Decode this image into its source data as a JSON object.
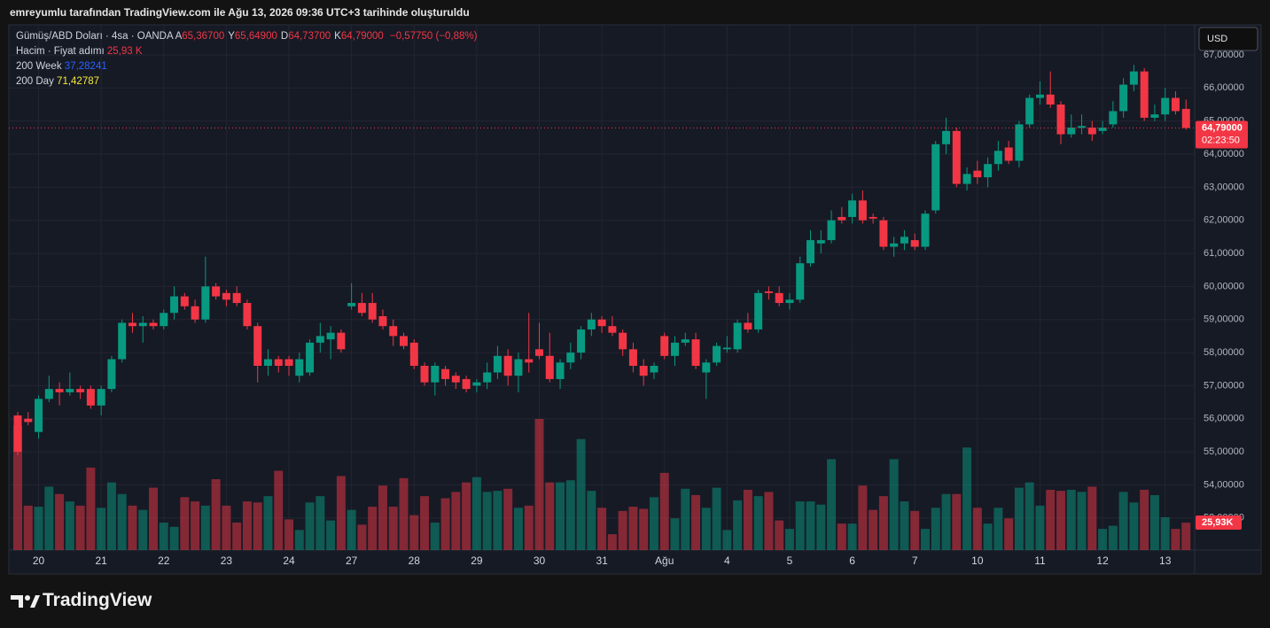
{
  "attribution": "emreyumlu tarafından TradingView.com ile Ağu 13, 2026 09:36 UTC+3 tarihinde oluşturuldu",
  "brand": "TradingView",
  "header": {
    "symbol": "Gümüş/ABD Doları · 4sa · OANDA",
    "ohlc_keys": [
      "A",
      "Y",
      "D",
      "K"
    ],
    "change": "−0,57750 (−0,88%)",
    "volume_name": "Hacim · Fiyat adımı",
    "volume_value": "25,93 K",
    "ma_week_name": "200 Week",
    "ma_week_value": "37,28241",
    "ma_week_color": "#2962ff",
    "ma_day_name": "200 Day",
    "ma_day_value": "71,42787",
    "ma_day_color": "#f5e93b"
  },
  "chart_data": {
    "type": "candlestick",
    "title": "Gümüş/ABD Doları · 4sa · OANDA",
    "currency": "USD",
    "countdown": "02:23:50",
    "up_color": "#089981",
    "down_color": "#f23645",
    "grid": true,
    "categories": [
      null,
      null,
      "20",
      null,
      null,
      null,
      null,
      null,
      "21",
      null,
      null,
      null,
      null,
      null,
      "22",
      null,
      null,
      null,
      null,
      null,
      "23",
      null,
      null,
      null,
      null,
      null,
      "24",
      null,
      null,
      null,
      null,
      null,
      "27",
      null,
      null,
      null,
      null,
      null,
      "28",
      null,
      null,
      null,
      null,
      null,
      "29",
      null,
      null,
      null,
      null,
      null,
      "30",
      null,
      null,
      null,
      null,
      null,
      "31",
      null,
      null,
      null,
      null,
      null,
      "Ağu",
      null,
      null,
      null,
      null,
      null,
      "4",
      null,
      null,
      null,
      null,
      null,
      "5",
      null,
      null,
      null,
      null,
      null,
      "6",
      null,
      null,
      null,
      null,
      null,
      "7",
      null,
      null,
      null,
      null,
      null,
      "10",
      null,
      null,
      null,
      null,
      null,
      "11",
      null,
      null,
      null,
      null,
      null,
      "12",
      null,
      null,
      null,
      null,
      null,
      "13",
      null,
      null
    ],
    "candles": [
      [
        56.1,
        56.2,
        54.9,
        55.0,
        118
      ],
      [
        56.0,
        56.2,
        55.8,
        55.9,
        42
      ],
      [
        55.6,
        56.7,
        55.4,
        56.6,
        41
      ],
      [
        56.6,
        57.3,
        56.5,
        56.9,
        60
      ],
      [
        56.9,
        57.1,
        56.4,
        56.8,
        53
      ],
      [
        56.8,
        57.4,
        56.7,
        56.9,
        46
      ],
      [
        56.9,
        57.0,
        56.6,
        56.8,
        42
      ],
      [
        56.9,
        57.0,
        56.3,
        56.4,
        78
      ],
      [
        56.4,
        57.0,
        56.1,
        56.9,
        40
      ],
      [
        56.9,
        57.9,
        56.8,
        57.8,
        64
      ],
      [
        57.8,
        59.0,
        57.7,
        58.9,
        53
      ],
      [
        58.9,
        59.2,
        58.6,
        58.8,
        42
      ],
      [
        58.8,
        59.1,
        58.3,
        58.9,
        38
      ],
      [
        58.9,
        59.0,
        58.7,
        58.8,
        59
      ],
      [
        58.8,
        59.3,
        58.7,
        59.2,
        26
      ],
      [
        59.2,
        60.0,
        59.0,
        59.7,
        22
      ],
      [
        59.7,
        59.8,
        59.3,
        59.4,
        50
      ],
      [
        59.4,
        59.6,
        58.9,
        59.0,
        46
      ],
      [
        59.0,
        60.9,
        58.9,
        60.0,
        42
      ],
      [
        60.0,
        60.1,
        59.6,
        59.7,
        67
      ],
      [
        59.8,
        59.9,
        59.4,
        59.6,
        42
      ],
      [
        59.8,
        60.0,
        59.4,
        59.5,
        26
      ],
      [
        59.5,
        59.6,
        58.7,
        58.8,
        46
      ],
      [
        58.8,
        58.9,
        57.1,
        57.6,
        45
      ],
      [
        57.6,
        58.1,
        57.3,
        57.8,
        51
      ],
      [
        57.8,
        57.9,
        57.4,
        57.6,
        75
      ],
      [
        57.8,
        57.9,
        57.3,
        57.6,
        29
      ],
      [
        57.3,
        58.0,
        57.1,
        57.8,
        19
      ],
      [
        57.4,
        58.4,
        57.3,
        58.3,
        45
      ],
      [
        58.3,
        58.9,
        58.0,
        58.5,
        51
      ],
      [
        58.4,
        58.8,
        57.8,
        58.6,
        28
      ],
      [
        58.6,
        58.7,
        58.0,
        58.1,
        70
      ],
      [
        59.4,
        60.1,
        59.3,
        59.5,
        38
      ],
      [
        59.5,
        59.8,
        59.1,
        59.2,
        24
      ],
      [
        59.5,
        59.8,
        58.9,
        59.0,
        41
      ],
      [
        59.1,
        59.3,
        58.7,
        58.8,
        61
      ],
      [
        58.8,
        59.0,
        58.2,
        58.5,
        41
      ],
      [
        58.5,
        58.6,
        58.1,
        58.2,
        68
      ],
      [
        58.3,
        58.4,
        57.5,
        57.6,
        33
      ],
      [
        57.6,
        57.7,
        57.0,
        57.1,
        51
      ],
      [
        57.1,
        57.7,
        56.7,
        57.6,
        26
      ],
      [
        57.5,
        57.6,
        57.0,
        57.2,
        49
      ],
      [
        57.3,
        57.4,
        56.9,
        57.1,
        55
      ],
      [
        57.2,
        57.3,
        56.8,
        56.9,
        64
      ],
      [
        57.0,
        57.2,
        56.8,
        57.1,
        69
      ],
      [
        57.1,
        57.7,
        56.9,
        57.4,
        55
      ],
      [
        57.4,
        58.2,
        57.2,
        57.9,
        56
      ],
      [
        57.9,
        58.1,
        57.0,
        57.3,
        58
      ],
      [
        57.3,
        58.0,
        56.8,
        57.8,
        40
      ],
      [
        57.8,
        59.2,
        57.4,
        57.7,
        42
      ],
      [
        58.1,
        58.9,
        57.8,
        57.9,
        124
      ],
      [
        57.9,
        58.6,
        57.1,
        57.2,
        64
      ],
      [
        57.2,
        57.8,
        56.9,
        57.7,
        64
      ],
      [
        57.7,
        58.3,
        57.5,
        58.0,
        66
      ],
      [
        58.0,
        58.8,
        57.8,
        58.7,
        105
      ],
      [
        58.7,
        59.2,
        58.5,
        59.0,
        56
      ],
      [
        59.0,
        59.1,
        58.6,
        58.8,
        40
      ],
      [
        58.8,
        59.1,
        58.5,
        58.6,
        15
      ],
      [
        58.6,
        58.7,
        57.9,
        58.1,
        37
      ],
      [
        58.1,
        58.3,
        57.4,
        57.6,
        41
      ],
      [
        57.6,
        57.8,
        57.0,
        57.3,
        39
      ],
      [
        57.4,
        57.7,
        57.2,
        57.6,
        50
      ],
      [
        58.5,
        58.6,
        57.8,
        57.9,
        73
      ],
      [
        57.9,
        58.5,
        57.6,
        58.3,
        30
      ],
      [
        58.3,
        58.6,
        58.2,
        58.4,
        58
      ],
      [
        58.4,
        58.6,
        57.5,
        57.6,
        52
      ],
      [
        57.4,
        57.8,
        56.6,
        57.7,
        40
      ],
      [
        57.7,
        58.3,
        57.6,
        58.2,
        59
      ],
      [
        58.1,
        58.5,
        58.0,
        58.15,
        19
      ],
      [
        58.1,
        59.0,
        58.0,
        58.9,
        47
      ],
      [
        58.9,
        59.2,
        58.6,
        58.7,
        57
      ],
      [
        58.7,
        59.9,
        58.6,
        59.8,
        51
      ],
      [
        59.85,
        60.0,
        59.6,
        59.8,
        55
      ],
      [
        59.8,
        60.0,
        59.4,
        59.5,
        28
      ],
      [
        59.5,
        59.8,
        59.3,
        59.6,
        20
      ],
      [
        59.6,
        60.9,
        59.5,
        60.7,
        46
      ],
      [
        60.7,
        61.7,
        60.6,
        61.4,
        46
      ],
      [
        61.3,
        61.7,
        61.0,
        61.4,
        43
      ],
      [
        61.4,
        62.3,
        61.3,
        62.0,
        86
      ],
      [
        62.1,
        62.4,
        61.9,
        62.0,
        25
      ],
      [
        62.1,
        62.8,
        61.9,
        62.6,
        25
      ],
      [
        62.6,
        62.9,
        61.9,
        62.0,
        61
      ],
      [
        62.1,
        62.2,
        61.9,
        62.05,
        38
      ],
      [
        62.0,
        62.1,
        61.1,
        61.2,
        51
      ],
      [
        61.2,
        61.5,
        60.9,
        61.3,
        86
      ],
      [
        61.3,
        61.7,
        61.1,
        61.5,
        46
      ],
      [
        61.4,
        61.6,
        61.1,
        61.2,
        37
      ],
      [
        61.2,
        62.3,
        61.1,
        62.2,
        20
      ],
      [
        62.3,
        64.4,
        62.2,
        64.3,
        40
      ],
      [
        64.3,
        65.1,
        64.0,
        64.7,
        53
      ],
      [
        64.7,
        64.8,
        63.0,
        63.1,
        53
      ],
      [
        63.1,
        63.6,
        62.9,
        63.4,
        97
      ],
      [
        63.5,
        63.8,
        63.1,
        63.3,
        40
      ],
      [
        63.3,
        63.9,
        63.0,
        63.7,
        25
      ],
      [
        63.7,
        64.4,
        63.5,
        64.1,
        40
      ],
      [
        64.2,
        64.4,
        63.7,
        63.8,
        30
      ],
      [
        63.8,
        65.0,
        63.6,
        64.9,
        59
      ],
      [
        64.9,
        65.8,
        64.8,
        65.7,
        64
      ],
      [
        65.7,
        66.2,
        65.5,
        65.8,
        42
      ],
      [
        65.8,
        66.5,
        65.4,
        65.5,
        57
      ],
      [
        65.5,
        65.6,
        64.3,
        64.6,
        56
      ],
      [
        64.6,
        65.2,
        64.5,
        64.8,
        57
      ],
      [
        64.8,
        65.2,
        64.6,
        64.85,
        55
      ],
      [
        64.8,
        65.0,
        64.4,
        64.6,
        60
      ],
      [
        64.7,
        65.0,
        64.6,
        64.8,
        20
      ],
      [
        64.9,
        65.6,
        64.8,
        65.3,
        23
      ],
      [
        65.3,
        66.3,
        65.1,
        66.1,
        55
      ],
      [
        66.1,
        66.7,
        65.9,
        66.5,
        45
      ],
      [
        66.5,
        66.6,
        65.0,
        65.1,
        57
      ],
      [
        65.1,
        65.5,
        65.0,
        65.2,
        52
      ],
      [
        65.2,
        66.0,
        65.0,
        65.7,
        31
      ],
      [
        65.7,
        65.9,
        65.2,
        65.3,
        20
      ],
      [
        65.367,
        65.649,
        64.737,
        64.79,
        25.93
      ]
    ],
    "last_value_labels": [
      "65,36700",
      "65,64900",
      "64,73700",
      "64,79000",
      "25,93K"
    ],
    "ylim": [
      52.03,
      67.91
    ],
    "yticks": [
      {
        "value": 53,
        "label": "53,00000"
      },
      {
        "value": 54,
        "label": "54,00000"
      },
      {
        "value": 55,
        "label": "55,00000"
      },
      {
        "value": 56,
        "label": "56,00000"
      },
      {
        "value": 57,
        "label": "57,00000"
      },
      {
        "value": 58,
        "label": "58,00000"
      },
      {
        "value": 59,
        "label": "59,00000"
      },
      {
        "value": 60,
        "label": "60,00000"
      },
      {
        "value": 61,
        "label": "61,00000"
      },
      {
        "value": 62,
        "label": "62,00000"
      },
      {
        "value": 63,
        "label": "63,00000"
      },
      {
        "value": 64,
        "label": "64,00000"
      },
      {
        "value": 65,
        "label": "65,00000"
      },
      {
        "value": 66,
        "label": "66,00000"
      },
      {
        "value": 67,
        "label": "67,00000"
      }
    ]
  }
}
